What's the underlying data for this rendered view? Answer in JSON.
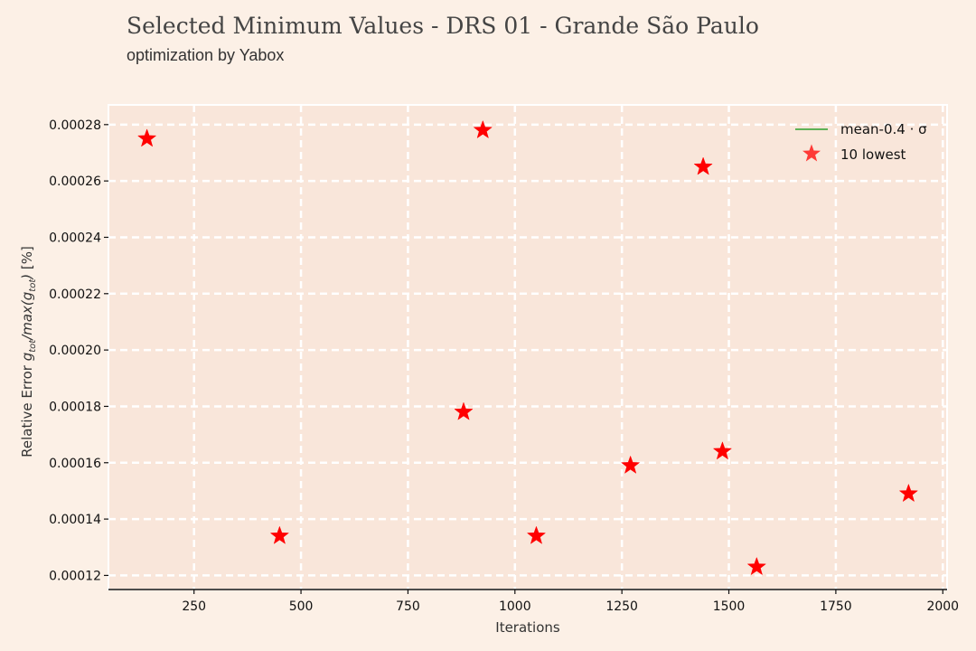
{
  "header": {
    "title": "Selected Minimum Values - DRS 01 - Grande São Paulo",
    "subtitle": "optimization by Yabox"
  },
  "colors": {
    "page_background": "#fcf0e6",
    "plot_background": "#f9e6da",
    "grid": "#ffffff",
    "points": "#ff0000",
    "mean_line": "#2ca02c"
  },
  "chart_data": {
    "type": "scatter",
    "title": "Selected Minimum Values - DRS 01 - Grande São Paulo",
    "subtitle": "optimization by Yabox",
    "xlabel": "Iterations",
    "ylabel": "Relative Error g_tot/max(g_tot) [%]",
    "xlim": [
      50,
      2010
    ],
    "ylim": [
      0.000115,
      0.000287
    ],
    "xticks": [
      250,
      500,
      750,
      1000,
      1250,
      1500,
      1750,
      2000
    ],
    "xtick_labels": [
      "250",
      "500",
      "750",
      "1000",
      "1250",
      "1500",
      "1750",
      "2000"
    ],
    "yticks": [
      0.00012,
      0.00014,
      0.00016,
      0.00018,
      0.0002,
      0.00022,
      0.00024,
      0.00026,
      0.00028
    ],
    "ytick_labels": [
      "0.00012",
      "0.00014",
      "0.00016",
      "0.00018",
      "0.00020",
      "0.00022",
      "0.00024",
      "0.00026",
      "0.00028"
    ],
    "grid": true,
    "legend_position": "top-right",
    "legend": [
      {
        "label": "mean-0.4 · σ",
        "type": "line",
        "color": "#2ca02c"
      },
      {
        "label": "10 lowest",
        "type": "marker",
        "marker": "star",
        "color": "#ff0000"
      }
    ],
    "series": [
      {
        "name": "10 lowest",
        "marker": "star",
        "color": "#ff0000",
        "points": [
          {
            "x": 140,
            "y": 0.000275
          },
          {
            "x": 450,
            "y": 0.000134
          },
          {
            "x": 880,
            "y": 0.000178
          },
          {
            "x": 925,
            "y": 0.000278
          },
          {
            "x": 1050,
            "y": 0.000134
          },
          {
            "x": 1270,
            "y": 0.000159
          },
          {
            "x": 1440,
            "y": 0.000265
          },
          {
            "x": 1485,
            "y": 0.000164
          },
          {
            "x": 1565,
            "y": 0.000123
          },
          {
            "x": 1920,
            "y": 0.000149
          }
        ]
      }
    ]
  }
}
